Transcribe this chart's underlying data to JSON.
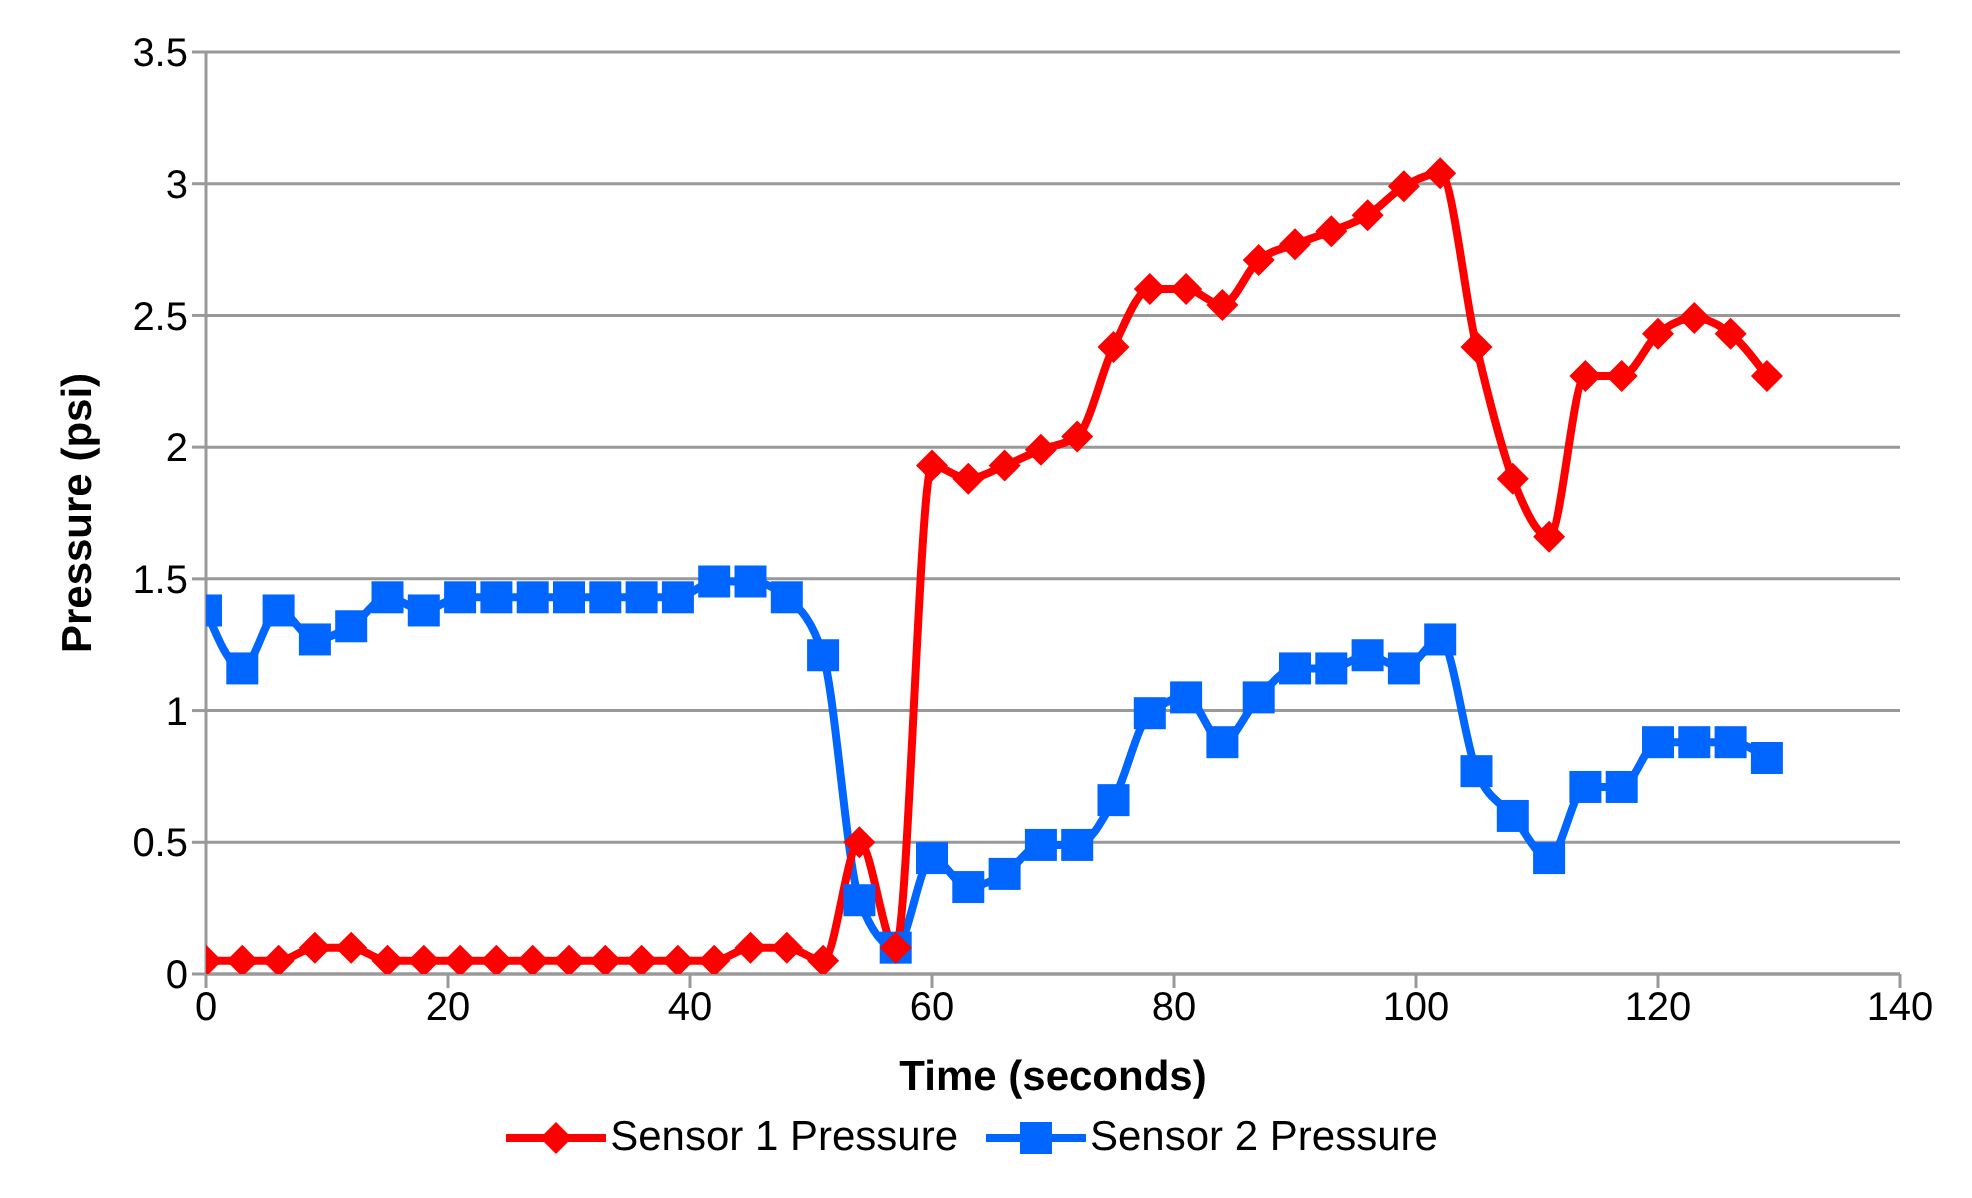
{
  "chart_data": {
    "type": "line",
    "xlabel": "Time (seconds)",
    "ylabel": "Pressure (psi)",
    "x": [
      0,
      3,
      6,
      9,
      12,
      15,
      18,
      21,
      24,
      27,
      30,
      33,
      36,
      39,
      42,
      45,
      48,
      51,
      54,
      57,
      60,
      63,
      66,
      69,
      72,
      75,
      78,
      81,
      84,
      87,
      90,
      93,
      96,
      99,
      102,
      105,
      108,
      111,
      114,
      117,
      120,
      123,
      126,
      129
    ],
    "series": [
      {
        "name": "Sensor 1 Pressure",
        "color": "#ff0000",
        "marker": "diamond",
        "values": [
          0.05,
          0.05,
          0.05,
          0.1,
          0.1,
          0.05,
          0.05,
          0.05,
          0.05,
          0.05,
          0.05,
          0.05,
          0.05,
          0.05,
          0.05,
          0.1,
          0.1,
          0.05,
          0.5,
          0.1,
          1.93,
          1.88,
          1.93,
          1.99,
          2.04,
          2.38,
          2.6,
          2.6,
          2.54,
          2.71,
          2.77,
          2.82,
          2.88,
          2.99,
          3.04,
          2.38,
          1.88,
          1.66,
          2.27,
          2.27,
          2.43,
          2.49,
          2.43,
          2.27
        ]
      },
      {
        "name": "Sensor 2 Pressure",
        "color": "#0066ff",
        "marker": "square",
        "values": [
          1.38,
          1.16,
          1.38,
          1.27,
          1.32,
          1.43,
          1.38,
          1.43,
          1.43,
          1.43,
          1.43,
          1.43,
          1.43,
          1.43,
          1.49,
          1.49,
          1.43,
          1.21,
          0.28,
          0.1,
          0.44,
          0.33,
          0.38,
          0.49,
          0.49,
          0.66,
          0.99,
          1.05,
          0.88,
          1.05,
          1.16,
          1.16,
          1.21,
          1.16,
          1.27,
          0.77,
          0.6,
          0.44,
          0.71,
          0.71,
          0.88,
          0.88,
          0.88,
          0.82
        ]
      }
    ],
    "xlim": [
      0,
      140
    ],
    "xticks": [
      0,
      20,
      40,
      60,
      80,
      100,
      120,
      140
    ],
    "ylim": [
      0,
      3.5
    ],
    "yticks": [
      0,
      0.5,
      1,
      1.5,
      2,
      2.5,
      3,
      3.5
    ],
    "grid": "y",
    "legend": "bottom",
    "line_style": "solid"
  }
}
